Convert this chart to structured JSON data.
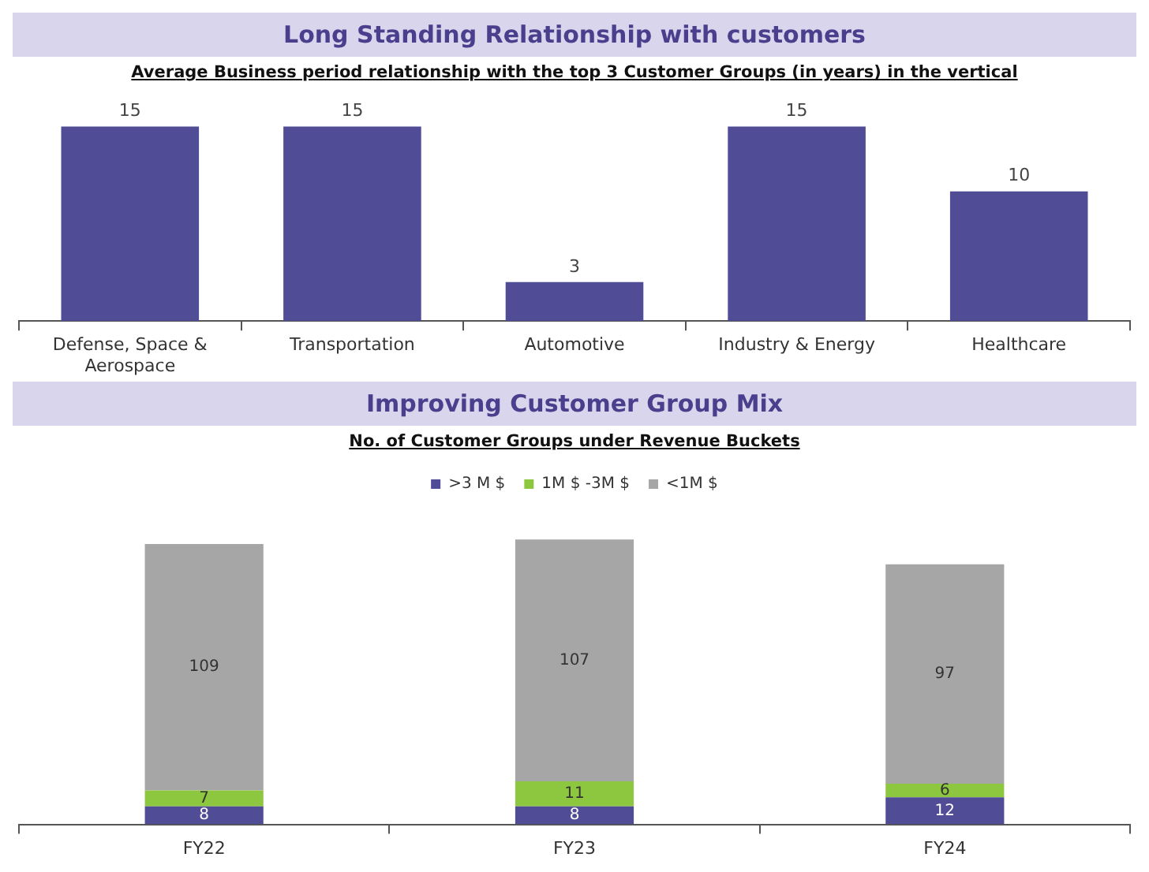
{
  "chart_data": [
    {
      "type": "bar",
      "title": "Long Standing Relationship with customers",
      "subtitle": "Average Business period relationship with the top 3 Customer Groups (in years) in the vertical",
      "categories": [
        "Defense, Space & Aerospace",
        "Transportation",
        "Automotive",
        "Industry & Energy",
        "Healthcare"
      ],
      "values": [
        15,
        15,
        3,
        15,
        10
      ],
      "color": "#514c96",
      "data_labels": true,
      "tick_labels": "x",
      "legend": false
    },
    {
      "type": "bar",
      "title": "Improving Customer Group Mix",
      "subtitle": "No. of Customer Groups under Revenue Buckets",
      "categories": [
        "FY22",
        "FY23",
        "FY24"
      ],
      "stacked": true,
      "data_labels": true,
      "tick_labels": "x",
      "legend": "top",
      "series": [
        {
          "name": ">3 M $",
          "color": "#514c96",
          "values": [
            8,
            8,
            12
          ]
        },
        {
          "name": "1M $ -3M $",
          "color": "#8dc63f",
          "values": [
            7,
            11,
            6
          ]
        },
        {
          "name": "<1M $",
          "color": "#a6a6a6",
          "values": [
            109,
            107,
            97
          ]
        }
      ]
    }
  ]
}
